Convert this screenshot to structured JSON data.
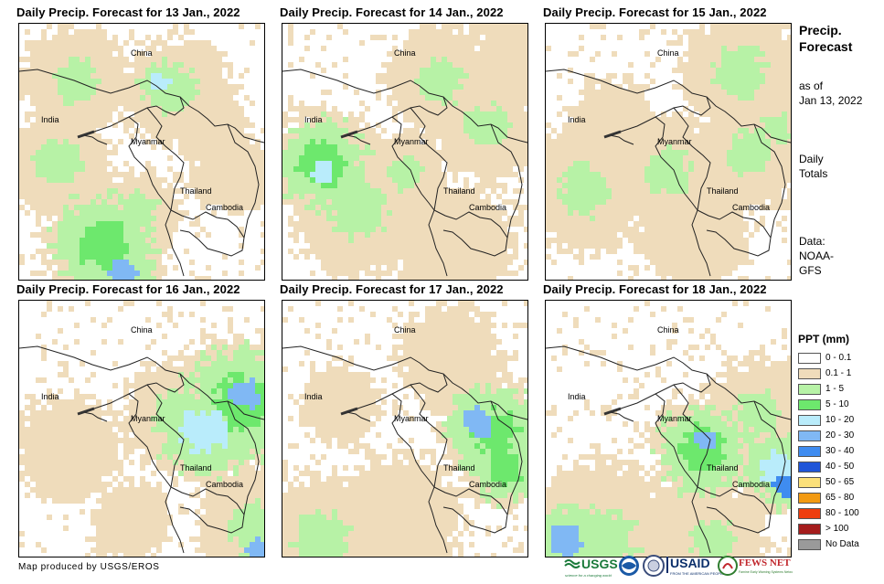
{
  "panels": [
    {
      "title": "Daily Precip. Forecast for 13 Jan., 2022"
    },
    {
      "title": "Daily Precip. Forecast for 14 Jan., 2022"
    },
    {
      "title": "Daily Precip. Forecast for 15 Jan., 2022"
    },
    {
      "title": "Daily Precip. Forecast for 16 Jan., 2022"
    },
    {
      "title": "Daily Precip. Forecast for 17 Jan., 2022"
    },
    {
      "title": "Daily Precip. Forecast for 18 Jan., 2022"
    }
  ],
  "map_labels": {
    "china": "China",
    "india": "India",
    "myanmar": "Myanmar",
    "thailand": "Thailand",
    "cambodia": "Cambodia"
  },
  "side": {
    "title_line1": "Precip.",
    "title_line2": "Forecast",
    "asof_line1": "as of",
    "asof_line2": "Jan 13, 2022",
    "totals_line1": "Daily",
    "totals_line2": "Totals",
    "data_line1": "Data:",
    "data_line2": "NOAA-",
    "data_line3": "GFS"
  },
  "legend": {
    "title": "PPT (mm)",
    "items": [
      {
        "label": "0 - 0.1",
        "color": "#ffffff"
      },
      {
        "label": "0.1 - 1",
        "color": "#efdcbb"
      },
      {
        "label": "1 - 5",
        "color": "#b7f2a6"
      },
      {
        "label": "5 - 10",
        "color": "#6de86d"
      },
      {
        "label": "10 - 20",
        "color": "#b9ecfb"
      },
      {
        "label": "20 - 30",
        "color": "#80b8f4"
      },
      {
        "label": "30 - 40",
        "color": "#3f8cf0"
      },
      {
        "label": "40 - 50",
        "color": "#1f55d8"
      },
      {
        "label": "50 - 65",
        "color": "#fbe07a"
      },
      {
        "label": "65 - 80",
        "color": "#f29a12"
      },
      {
        "label": "80 - 100",
        "color": "#ee3d0e"
      },
      {
        "label": "> 100",
        "color": "#a51d1d"
      },
      {
        "label": "No Data",
        "color": "#9a9a9a"
      }
    ]
  },
  "credit": "Map produced by USGS/EROS",
  "logos": {
    "usgs": "USGS",
    "usgs_tagline": "science for a changing world",
    "usaid": "USAID",
    "usaid_tagline": "FROM THE AMERICAN PEOPLE",
    "fewsnet": "FEWS NET",
    "fewsnet_tagline": "Famine Early Warning Systems Network"
  }
}
